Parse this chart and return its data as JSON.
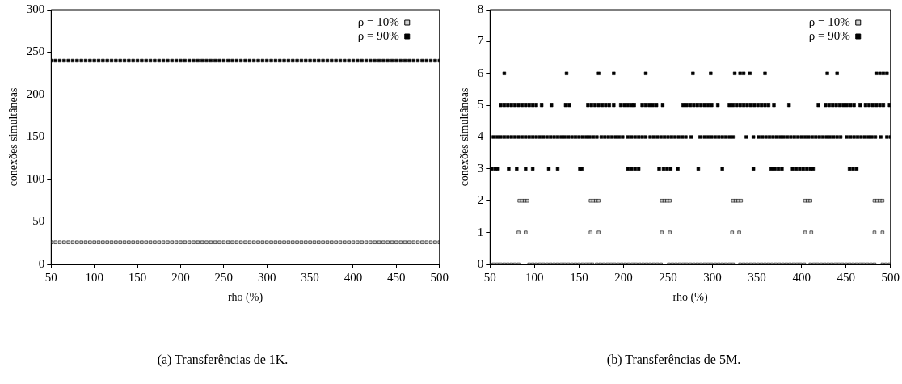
{
  "chart_data": [
    {
      "type": "scatter",
      "title": "(a) Transferências de 1K.",
      "xlabel": "rho (%)",
      "ylabel": "conexões simultâneas",
      "xlim": [
        50,
        500
      ],
      "xticks": [
        50,
        100,
        150,
        200,
        250,
        300,
        350,
        400,
        450,
        500
      ],
      "ylim": [
        0,
        300
      ],
      "yticks": [
        0,
        50,
        100,
        150,
        200,
        250,
        300
      ],
      "grid": false,
      "legend": "top right",
      "marker": "square",
      "series": [
        {
          "name": "ρ = 10%",
          "color": "#d0d0d0",
          "x": [
            50,
            55,
            60,
            65,
            70,
            75,
            80,
            85,
            90,
            95,
            100,
            105,
            110,
            115,
            120,
            125,
            130,
            135,
            140,
            145,
            150,
            155,
            160,
            165,
            170,
            175,
            180,
            185,
            190,
            195,
            200,
            205,
            210,
            215,
            220,
            225,
            230,
            235,
            240,
            245,
            250,
            255,
            260,
            265,
            270,
            275,
            280,
            285,
            290,
            295,
            300,
            305,
            310,
            315,
            320,
            325,
            330,
            335,
            340,
            345,
            350,
            355,
            360,
            365,
            370,
            375,
            380,
            385,
            390,
            395,
            400,
            405,
            410,
            415,
            420,
            425,
            430,
            435,
            440,
            445,
            450,
            455,
            460,
            465,
            470,
            475,
            480,
            485,
            490,
            495,
            500
          ],
          "values": [
            26,
            26,
            26,
            26,
            26,
            26,
            26,
            26,
            26,
            26,
            26,
            26,
            26,
            26,
            26,
            26,
            26,
            26,
            26,
            26,
            26,
            26,
            26,
            26,
            26,
            26,
            26,
            26,
            26,
            26,
            26,
            26,
            26,
            26,
            26,
            26,
            26,
            26,
            26,
            26,
            26,
            26,
            26,
            26,
            26,
            26,
            26,
            26,
            26,
            26,
            26,
            26,
            26,
            26,
            26,
            26,
            26,
            26,
            26,
            26,
            26,
            26,
            26,
            26,
            26,
            26,
            26,
            26,
            26,
            26,
            26,
            26,
            26,
            26,
            26,
            26,
            26,
            26,
            26,
            26,
            26,
            26,
            26,
            26,
            26,
            26,
            26,
            26,
            26,
            26,
            26
          ]
        },
        {
          "name": "ρ = 90%",
          "color": "#000000",
          "x": [
            50,
            55,
            60,
            65,
            70,
            75,
            80,
            85,
            90,
            95,
            100,
            105,
            110,
            115,
            120,
            125,
            130,
            135,
            140,
            145,
            150,
            155,
            160,
            165,
            170,
            175,
            180,
            185,
            190,
            195,
            200,
            205,
            210,
            215,
            220,
            225,
            230,
            235,
            240,
            245,
            250,
            255,
            260,
            265,
            270,
            275,
            280,
            285,
            290,
            295,
            300,
            305,
            310,
            315,
            320,
            325,
            330,
            335,
            340,
            345,
            350,
            355,
            360,
            365,
            370,
            375,
            380,
            385,
            390,
            395,
            400,
            405,
            410,
            415,
            420,
            425,
            430,
            435,
            440,
            445,
            450,
            455,
            460,
            465,
            470,
            475,
            480,
            485,
            490,
            495,
            500
          ],
          "values": [
            240,
            240,
            240,
            240,
            240,
            240,
            240,
            240,
            240,
            240,
            240,
            240,
            240,
            240,
            240,
            240,
            240,
            240,
            240,
            240,
            240,
            240,
            240,
            240,
            240,
            240,
            240,
            240,
            240,
            240,
            240,
            240,
            240,
            240,
            240,
            240,
            240,
            240,
            240,
            240,
            240,
            240,
            240,
            240,
            240,
            240,
            240,
            240,
            240,
            240,
            240,
            240,
            240,
            240,
            240,
            240,
            240,
            240,
            240,
            240,
            240,
            240,
            240,
            240,
            240,
            240,
            240,
            240,
            240,
            240,
            240,
            240,
            240,
            240,
            240,
            240,
            240,
            240,
            240,
            240,
            240,
            240,
            240,
            240,
            240,
            240,
            240,
            240,
            240,
            240,
            240
          ]
        }
      ]
    },
    {
      "type": "scatter",
      "title": "(b) Transferências de 5M.",
      "xlabel": "rho (%)",
      "ylabel": "conexões simultâneas",
      "xlim": [
        50,
        500
      ],
      "xticks": [
        50,
        100,
        150,
        200,
        250,
        300,
        350,
        400,
        450,
        500
      ],
      "ylim": [
        0,
        8
      ],
      "yticks": [
        0,
        1,
        2,
        3,
        4,
        5,
        6,
        7,
        8
      ],
      "grid": false,
      "legend": "top right",
      "marker": "square",
      "series": [
        {
          "name": "ρ = 10%",
          "color": "#d0d0d0",
          "x": [
            50,
            54,
            58,
            62,
            66,
            70,
            74,
            78,
            82,
            94,
            98,
            102,
            106,
            110,
            114,
            118,
            122,
            126,
            130,
            134,
            138,
            142,
            146,
            150,
            154,
            158,
            162,
            165,
            170,
            174,
            178,
            182,
            186,
            190,
            194,
            198,
            202,
            206,
            210,
            214,
            218,
            222,
            226,
            230,
            234,
            238,
            242,
            251,
            255,
            259,
            263,
            267,
            271,
            275,
            279,
            283,
            287,
            291,
            295,
            299,
            303,
            307,
            311,
            315,
            319,
            323,
            331,
            335,
            339,
            343,
            347,
            351,
            355,
            359,
            363,
            367,
            371,
            375,
            379,
            383,
            387,
            391,
            395,
            399,
            403,
            410,
            414,
            418,
            422,
            426,
            430,
            434,
            438,
            442,
            446,
            450,
            454,
            458,
            462,
            466,
            470,
            474,
            478,
            482,
            491,
            495,
            499,
            83,
            86,
            89,
            92,
            163,
            166,
            169,
            172,
            243,
            246,
            249,
            252,
            323,
            326,
            329,
            332,
            404,
            407,
            410,
            482,
            485,
            488,
            491,
            82,
            90,
            163,
            172,
            243,
            252,
            322,
            330,
            404,
            411,
            482,
            491
          ],
          "values": [
            0,
            0,
            0,
            0,
            0,
            0,
            0,
            0,
            0,
            0,
            0,
            0,
            0,
            0,
            0,
            0,
            0,
            0,
            0,
            0,
            0,
            0,
            0,
            0,
            0,
            0,
            0,
            0,
            0,
            0,
            0,
            0,
            0,
            0,
            0,
            0,
            0,
            0,
            0,
            0,
            0,
            0,
            0,
            0,
            0,
            0,
            0,
            0,
            0,
            0,
            0,
            0,
            0,
            0,
            0,
            0,
            0,
            0,
            0,
            0,
            0,
            0,
            0,
            0,
            0,
            0,
            0,
            0,
            0,
            0,
            0,
            0,
            0,
            0,
            0,
            0,
            0,
            0,
            0,
            0,
            0,
            0,
            0,
            0,
            0,
            0,
            0,
            0,
            0,
            0,
            0,
            0,
            0,
            0,
            0,
            0,
            0,
            0,
            0,
            0,
            0,
            0,
            0,
            0,
            0,
            0,
            0,
            2,
            2,
            2,
            2,
            2,
            2,
            2,
            2,
            2,
            2,
            2,
            2,
            2,
            2,
            2,
            2,
            2,
            2,
            2,
            2,
            2,
            2,
            2,
            1,
            1,
            1,
            1,
            1,
            1,
            1,
            1,
            1,
            1,
            1,
            1
          ]
        },
        {
          "name": "ρ = 90%",
          "color": "#000000",
          "x": [
            66,
            136,
            172,
            189,
            225,
            278,
            298,
            325,
            331,
            335,
            342,
            359,
            429,
            440,
            484,
            488,
            492,
            496,
            62,
            66,
            70,
            74,
            78,
            82,
            86,
            90,
            94,
            98,
            102,
            108,
            119,
            135,
            139,
            160,
            164,
            168,
            172,
            176,
            180,
            184,
            189,
            197,
            201,
            205,
            209,
            212,
            221,
            225,
            229,
            233,
            237,
            244,
            267,
            271,
            275,
            279,
            283,
            287,
            291,
            295,
            299,
            306,
            319,
            323,
            327,
            331,
            335,
            339,
            343,
            347,
            351,
            355,
            359,
            363,
            369,
            386,
            419,
            427,
            431,
            435,
            439,
            443,
            447,
            451,
            455,
            459,
            466,
            472,
            476,
            480,
            484,
            488,
            492,
            499,
            50,
            54,
            58,
            62,
            66,
            70,
            74,
            78,
            82,
            86,
            90,
            94,
            98,
            102,
            106,
            110,
            114,
            118,
            122,
            126,
            130,
            134,
            138,
            142,
            146,
            150,
            154,
            158,
            162,
            166,
            170,
            175,
            179,
            183,
            187,
            191,
            195,
            199,
            205,
            209,
            213,
            217,
            221,
            225,
            230,
            234,
            238,
            242,
            246,
            250,
            254,
            258,
            262,
            266,
            270,
            276,
            286,
            291,
            295,
            299,
            303,
            307,
            311,
            315,
            319,
            323,
            338,
            346,
            352,
            356,
            360,
            364,
            368,
            372,
            376,
            380,
            384,
            388,
            392,
            396,
            400,
            404,
            408,
            412,
            416,
            420,
            424,
            428,
            432,
            436,
            440,
            444,
            451,
            455,
            459,
            463,
            467,
            471,
            475,
            479,
            483,
            489,
            496,
            500,
            52,
            56,
            59,
            71,
            80,
            90,
            98,
            116,
            126,
            151,
            153,
            205,
            209,
            213,
            217,
            240,
            245,
            249,
            253,
            261,
            284,
            311,
            346,
            366,
            370,
            374,
            378,
            390,
            394,
            398,
            402,
            406,
            410,
            413,
            454,
            458,
            462
          ],
          "values": [
            6,
            6,
            6,
            6,
            6,
            6,
            6,
            6,
            6,
            6,
            6,
            6,
            6,
            6,
            6,
            6,
            6,
            6,
            5,
            5,
            5,
            5,
            5,
            5,
            5,
            5,
            5,
            5,
            5,
            5,
            5,
            5,
            5,
            5,
            5,
            5,
            5,
            5,
            5,
            5,
            5,
            5,
            5,
            5,
            5,
            5,
            5,
            5,
            5,
            5,
            5,
            5,
            5,
            5,
            5,
            5,
            5,
            5,
            5,
            5,
            5,
            5,
            5,
            5,
            5,
            5,
            5,
            5,
            5,
            5,
            5,
            5,
            5,
            5,
            5,
            5,
            5,
            5,
            5,
            5,
            5,
            5,
            5,
            5,
            5,
            5,
            5,
            5,
            5,
            5,
            5,
            5,
            5,
            5,
            4,
            4,
            4,
            4,
            4,
            4,
            4,
            4,
            4,
            4,
            4,
            4,
            4,
            4,
            4,
            4,
            4,
            4,
            4,
            4,
            4,
            4,
            4,
            4,
            4,
            4,
            4,
            4,
            4,
            4,
            4,
            4,
            4,
            4,
            4,
            4,
            4,
            4,
            4,
            4,
            4,
            4,
            4,
            4,
            4,
            4,
            4,
            4,
            4,
            4,
            4,
            4,
            4,
            4,
            4,
            4,
            4,
            4,
            4,
            4,
            4,
            4,
            4,
            4,
            4,
            4,
            4,
            4,
            4,
            4,
            4,
            4,
            4,
            4,
            4,
            4,
            4,
            4,
            4,
            4,
            4,
            4,
            4,
            4,
            4,
            4,
            4,
            4,
            4,
            4,
            4,
            4,
            4,
            4,
            4,
            4,
            4,
            4,
            4,
            4,
            4,
            4,
            4,
            4,
            3,
            3,
            3,
            3,
            3,
            3,
            3,
            3,
            3,
            3,
            3,
            3,
            3,
            3,
            3,
            3,
            3,
            3,
            3,
            3,
            3,
            3,
            3,
            3,
            3,
            3,
            3,
            3,
            3,
            3,
            3,
            3,
            3,
            3,
            3,
            3,
            3
          ]
        }
      ]
    }
  ]
}
